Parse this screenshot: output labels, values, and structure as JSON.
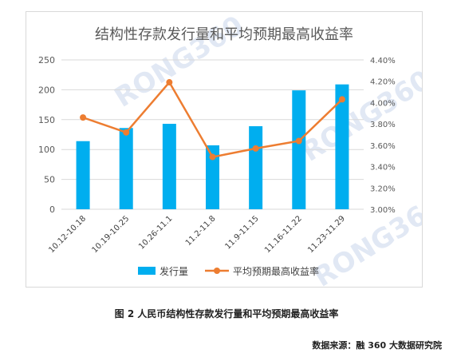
{
  "chart_data": {
    "type": "bar+line",
    "title": "结构性存款发行量和平均预期最高收益率",
    "categories": [
      "10.12-10.18",
      "10.19-10.25",
      "10.26-11.1",
      "11.2-11.8",
      "11.9-11.15",
      "11.16-11.22",
      "11.23-11.29"
    ],
    "series": [
      {
        "name": "发行量",
        "type": "bar",
        "axis": "left",
        "color": "#00aeef",
        "values": [
          114,
          136,
          143,
          107,
          139,
          199,
          209
        ]
      },
      {
        "name": "平均预期最高收益率",
        "type": "line",
        "axis": "right",
        "color": "#ed7d31",
        "values": [
          3.86,
          3.72,
          4.19,
          3.49,
          3.57,
          3.64,
          4.03
        ]
      }
    ],
    "y_left": {
      "min": 0,
      "max": 250,
      "ticks": [
        "0",
        "50",
        "100",
        "150",
        "200",
        "250"
      ]
    },
    "y_right": {
      "min": 3.0,
      "max": 4.4,
      "ticks": [
        "3.00%",
        "3.20%",
        "3.40%",
        "3.60%",
        "3.80%",
        "4.00%",
        "4.20%",
        "4.40%"
      ]
    },
    "legend": "bottom",
    "watermark": "RONG360"
  },
  "caption": "图 2 人民币结构性存款发行量和平均预期最高收益率",
  "source": "数据来源：融 360 大数据研究院"
}
